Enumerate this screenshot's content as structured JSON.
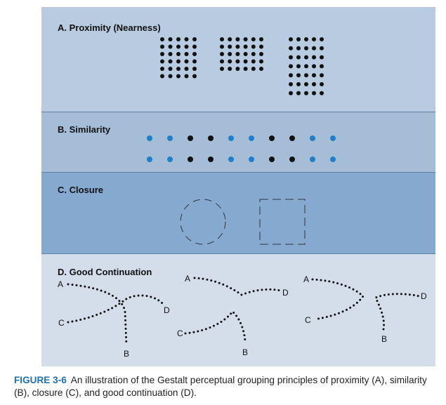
{
  "panels": {
    "proximity": {
      "title": "A. Proximity (Nearness)",
      "groups": [
        {
          "rows": 6,
          "cols": 5
        },
        {
          "rows": 5,
          "cols": 6
        },
        {
          "rows": 7,
          "cols": 5
        }
      ]
    },
    "similarity": {
      "title": "B. Similarity",
      "rows": 2,
      "colors": [
        "#1f7fc9",
        "#1f7fc9",
        "#111111",
        "#111111",
        "#1f7fc9",
        "#1f7fc9",
        "#111111",
        "#111111",
        "#1f7fc9",
        "#1f7fc9"
      ]
    },
    "closure": {
      "title": "C. Closure",
      "shapes": [
        "circle",
        "square"
      ]
    },
    "continuation": {
      "title": "D. Good Continuation",
      "labels": [
        "A",
        "B",
        "C",
        "D"
      ]
    }
  },
  "caption": {
    "label": "FIGURE 3-6",
    "text": "An illustration of the Gestalt perceptual grouping principles of proximity (A), similarity (B), closure (C), and good continuation (D)."
  },
  "colors": {
    "accent_blue": "#1f7fc9",
    "dot_black": "#111111",
    "caption_label": "#1f6fb3"
  }
}
